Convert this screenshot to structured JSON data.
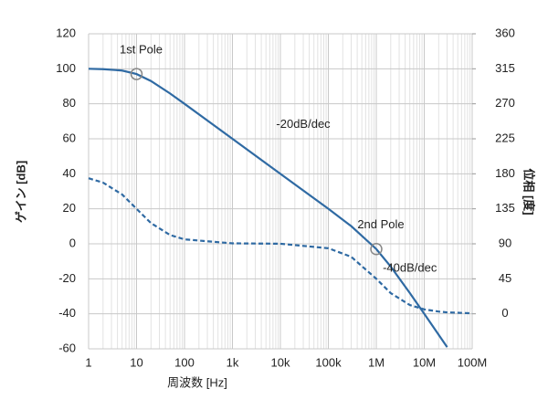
{
  "chart_data": {
    "type": "line",
    "x_label": "周波数 [Hz]",
    "y_label": "ゲイン [dB]",
    "y2_label": "位相 [度]",
    "xscale": "log",
    "grid": true,
    "minor_grid": true,
    "xlim": [
      1,
      100000000
    ],
    "xticks": [
      1,
      10,
      100,
      {
        "value": 1000,
        "label": "1k"
      },
      {
        "value": 10000,
        "label": "10k"
      },
      {
        "value": 100000,
        "label": "100k"
      },
      {
        "value": 1000000,
        "label": "1M"
      },
      {
        "value": 10000000,
        "label": "10M"
      },
      {
        "value": 100000000,
        "label": "100M"
      }
    ],
    "ylim": [
      -60,
      120
    ],
    "yticks": [
      -60,
      -40,
      -20,
      0,
      20,
      40,
      60,
      80,
      100,
      120
    ],
    "y2lim": [
      -45,
      360
    ],
    "y2ticks": [
      0,
      45,
      90,
      135,
      180,
      225,
      270,
      315,
      360
    ],
    "x": [
      1,
      2,
      5,
      10,
      20,
      50,
      100,
      1000,
      10000,
      100000,
      300000,
      1000000,
      2000000,
      5000000,
      10000000,
      20000000,
      30000000,
      100000000
    ],
    "series": [
      {
        "color": "#2f6aa3",
        "dash": false,
        "values": [
          100,
          99.8,
          99,
          97,
          93,
          85.9,
          80,
          60,
          40,
          20,
          10.1,
          -3,
          -13,
          -28.1,
          -40,
          -52,
          -59,
          null
        ]
      },
      {
        "color": "#2f6aa3",
        "dash": true,
        "axis": "y2",
        "values": [
          174.3,
          168.7,
          153.4,
          135,
          116.6,
          101.3,
          95.7,
          90.6,
          90.1,
          84.3,
          73.3,
          45,
          26.6,
          11.3,
          5.7,
          2.9,
          1.9,
          0.6
        ]
      }
    ],
    "annotations": [
      {
        "text": "1st Pole",
        "x": 10,
        "y": 97
      },
      {
        "text": "2nd Pole",
        "x": 1000000,
        "y": -3
      },
      {
        "text": "-20dB/dec",
        "x": 30000,
        "y": 68
      },
      {
        "text": "-40dB/dec",
        "x": 5000000,
        "y": -14
      }
    ]
  }
}
